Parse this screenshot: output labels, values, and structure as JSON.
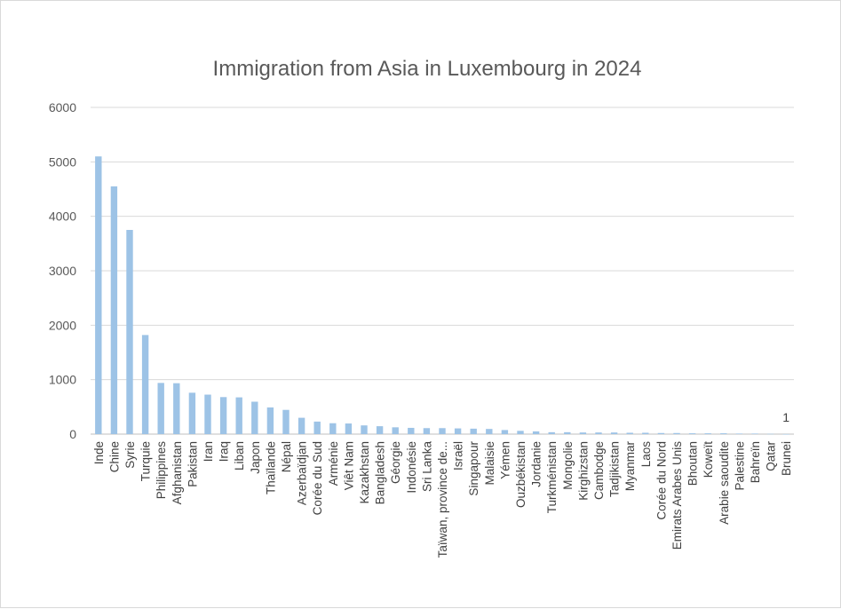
{
  "chart_data": {
    "type": "bar",
    "title": "Immigration from Asia in Luxembourg  in 2024",
    "xlabel": "",
    "ylabel": "",
    "ylim": [
      0,
      6000
    ],
    "yticks": [
      0,
      1000,
      2000,
      3000,
      4000,
      5000,
      6000
    ],
    "grid": true,
    "bar_color": "#9dc3e6",
    "categories": [
      "Inde",
      "Chine",
      "Syrie",
      "Turquie",
      "Philippines",
      "Afghanistan",
      "Pakistan",
      "Iran",
      "Iraq",
      "Liban",
      "Japon",
      "Thaïlande",
      "Népal",
      "Azerbaïdjan",
      "Corée du Sud",
      "Arménie",
      "Viêt Nam",
      "Kazakhstan",
      "Bangladesh",
      "Géorgie",
      "Indonésie",
      "Sri Lanka",
      "Taïwan, province de...",
      "Israël",
      "Singapour",
      "Malaisie",
      "Yémen",
      "Ouzbékistan",
      "Jordanie",
      "Turkménistan",
      "Mongolie",
      "Kirghizstan",
      "Cambodge",
      "Tadjikistan",
      "Myanmar",
      "Laos",
      "Corée du Nord",
      "Emirats Arabes Unis",
      "Bhoutan",
      "Koweït",
      "Arabie saoudite",
      "Palestine",
      "Bahreïn",
      "Qatar",
      "Brunei"
    ],
    "values": [
      5100,
      4550,
      3750,
      1820,
      940,
      935,
      760,
      725,
      680,
      675,
      595,
      490,
      445,
      300,
      230,
      200,
      195,
      160,
      145,
      125,
      115,
      110,
      110,
      105,
      100,
      95,
      75,
      60,
      50,
      35,
      35,
      30,
      30,
      30,
      25,
      25,
      20,
      20,
      15,
      15,
      15,
      10,
      10,
      5,
      1
    ],
    "data_labels": [
      {
        "index": 44,
        "text": "1"
      }
    ]
  }
}
